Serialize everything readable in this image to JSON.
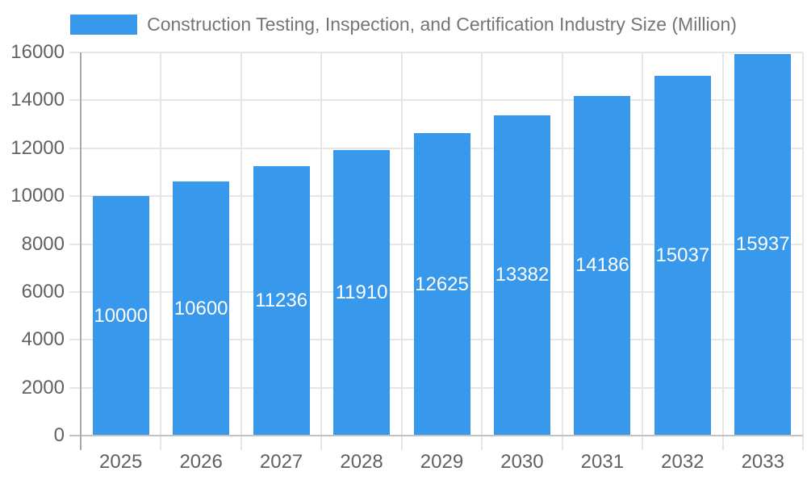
{
  "legend": {
    "label": "Construction Testing, Inspection, and Certification Industry Size (Million)"
  },
  "chart_data": {
    "type": "bar",
    "title": "Construction Testing, Inspection, and Certification Industry Size (Million)",
    "series_name": "Construction Testing, Inspection, and Certification Industry Size (Million)",
    "categories": [
      "2025",
      "2026",
      "2027",
      "2028",
      "2029",
      "2030",
      "2031",
      "2032",
      "2033"
    ],
    "values": [
      10000,
      10600,
      11236,
      11910,
      12625,
      13382,
      14186,
      15037,
      15937
    ],
    "value_labels": [
      "10000",
      "10600",
      "11236",
      "11910",
      "12625",
      "13382",
      "14186",
      "15037",
      "15937"
    ],
    "xlabel": "",
    "ylabel": "",
    "ylim": [
      0,
      16000
    ],
    "y_ticks": [
      0,
      2000,
      4000,
      6000,
      8000,
      10000,
      12000,
      14000,
      16000
    ],
    "grid": true,
    "legend_position": "top",
    "colors": {
      "bar": "#3898EC",
      "gridline": "#e6e6e6",
      "y_axis_line": "#a9a9a9",
      "x_axis_line": "#c2c2c2",
      "tick_text": "#616161",
      "legend_text": "#757575",
      "value_label_text": "#ffffff",
      "background": "#ffffff"
    }
  }
}
